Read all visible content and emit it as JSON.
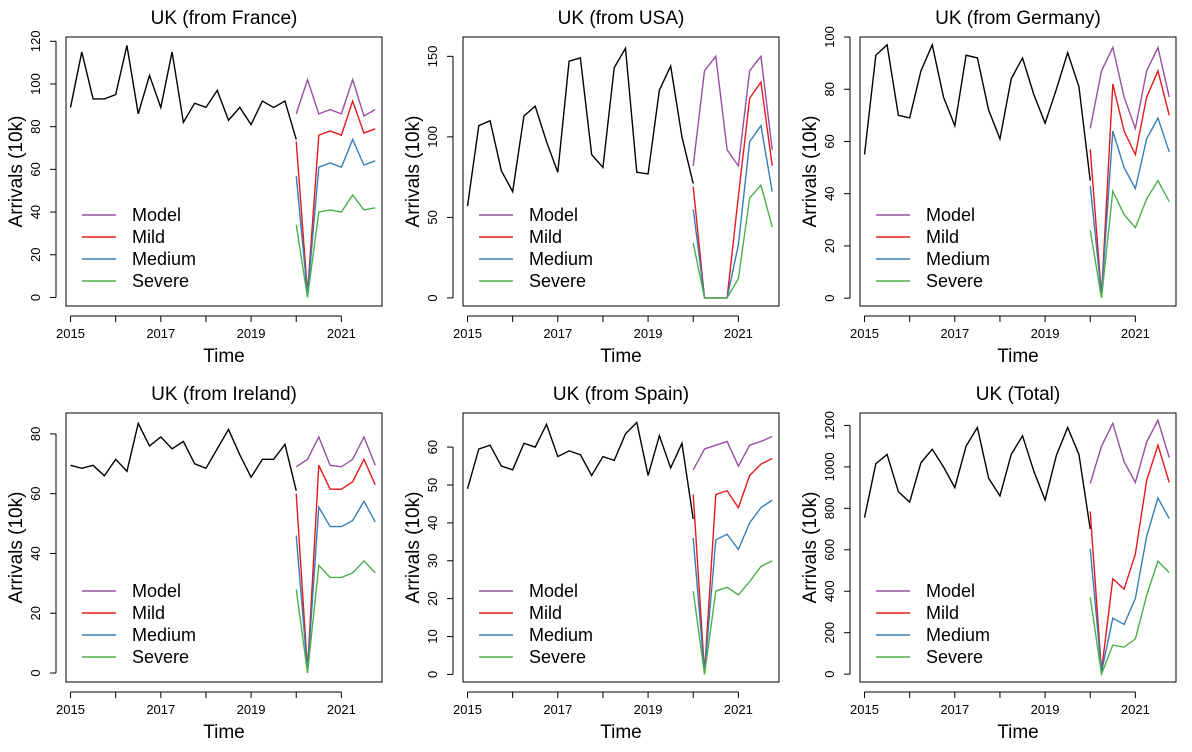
{
  "axis_labels": {
    "x": "Time",
    "y": "Arrivals (10k)"
  },
  "legend": {
    "entries": [
      {
        "name": "Model",
        "color": "#984ea3"
      },
      {
        "name": "Mild",
        "color": "#e41a1c"
      },
      {
        "name": "Medium",
        "color": "#377eb8"
      },
      {
        "name": "Severe",
        "color": "#4daf4a"
      }
    ],
    "placement": "bottom-left"
  },
  "history_color": "#000000",
  "chart_data": [
    {
      "type": "line",
      "title": "UK (from France)",
      "xlabel": "Time",
      "ylabel": "Arrivals (10k)",
      "xlim": [
        2014.9,
        2021.9
      ],
      "ylim": [
        -4,
        122
      ],
      "x_ticks": [
        2015,
        2017,
        2019,
        2021
      ],
      "x_minor_ticks": [
        2016,
        2018,
        2020
      ],
      "y_ticks": [
        0,
        20,
        40,
        60,
        80,
        100,
        120
      ],
      "history": {
        "x_start": 2015.0,
        "x_step": 0.25,
        "values": [
          89,
          115,
          93,
          93,
          95,
          118,
          86,
          104,
          89,
          115,
          82,
          91,
          89,
          97,
          83,
          89,
          81,
          92,
          89,
          92,
          74
        ]
      },
      "forecast": {
        "x_start": 2020.0,
        "x_step": 0.25,
        "series": [
          {
            "name": "Model",
            "values": [
              86,
              102,
              86,
              88,
              86,
              102,
              85,
              88
            ]
          },
          {
            "name": "Mild",
            "values": [
              73,
              2,
              76,
              78,
              76,
              92,
              77,
              79
            ]
          },
          {
            "name": "Medium",
            "values": [
              57,
              1,
              61,
              63,
              61,
              74,
              62,
              64
            ]
          },
          {
            "name": "Severe",
            "values": [
              34,
              0,
              40,
              41,
              40,
              48,
              41,
              42
            ]
          }
        ]
      }
    },
    {
      "type": "line",
      "title": "UK (from USA)",
      "xlabel": "Time",
      "ylabel": "Arrivals (10k)",
      "xlim": [
        2014.9,
        2021.9
      ],
      "ylim": [
        -5,
        162
      ],
      "x_ticks": [
        2015,
        2017,
        2019,
        2021
      ],
      "x_minor_ticks": [
        2016,
        2018,
        2020
      ],
      "y_ticks": [
        0,
        50,
        100,
        150
      ],
      "history": {
        "x_start": 2015.0,
        "x_step": 0.25,
        "values": [
          57,
          107,
          110,
          79,
          66,
          113,
          119,
          97,
          78,
          147,
          149,
          89,
          81,
          143,
          155,
          78,
          77,
          129,
          144,
          100,
          71
        ]
      },
      "forecast": {
        "x_start": 2020.0,
        "x_step": 0.25,
        "series": [
          {
            "name": "Model",
            "values": [
              82,
              141,
              150,
              92,
              82,
              141,
              150,
              92
            ]
          },
          {
            "name": "Mild",
            "values": [
              69,
              0,
              0,
              0,
              63,
              124,
              134,
              82
            ]
          },
          {
            "name": "Medium",
            "values": [
              55,
              0,
              0,
              0,
              33,
              97,
              107,
              66
            ]
          },
          {
            "name": "Severe",
            "values": [
              34,
              0,
              0,
              0,
              12,
              62,
              70,
              44
            ]
          }
        ]
      }
    },
    {
      "type": "line",
      "title": "UK (from Germany)",
      "xlabel": "Time",
      "ylabel": "Arrivals (10k)",
      "xlim": [
        2014.9,
        2021.9
      ],
      "ylim": [
        -3,
        100
      ],
      "x_ticks": [
        2015,
        2017,
        2019,
        2021
      ],
      "x_minor_ticks": [
        2016,
        2018,
        2020
      ],
      "y_ticks": [
        0,
        20,
        40,
        60,
        80,
        100
      ],
      "history": {
        "x_start": 2015.0,
        "x_step": 0.25,
        "values": [
          55,
          93,
          97,
          70,
          69,
          87,
          97,
          77,
          66,
          93,
          92,
          72,
          61,
          84,
          92,
          78,
          67,
          80,
          94,
          81,
          45
        ]
      },
      "forecast": {
        "x_start": 2020.0,
        "x_step": 0.25,
        "series": [
          {
            "name": "Model",
            "values": [
              65,
              87,
              96,
              77,
              65,
              87,
              96,
              77
            ]
          },
          {
            "name": "Mild",
            "values": [
              57,
              1,
              82,
              64,
              55,
              77,
              87,
              70
            ]
          },
          {
            "name": "Medium",
            "values": [
              43,
              1,
              64,
              50,
              42,
              61,
              69,
              56
            ]
          },
          {
            "name": "Severe",
            "values": [
              26,
              0,
              41,
              32,
              27,
              38,
              45,
              37
            ]
          }
        ]
      }
    },
    {
      "type": "line",
      "title": "UK (from Ireland)",
      "xlabel": "Time",
      "ylabel": "Arrivals (10k)",
      "xlim": [
        2014.9,
        2021.9
      ],
      "ylim": [
        -3,
        87
      ],
      "x_ticks": [
        2015,
        2017,
        2019,
        2021
      ],
      "x_minor_ticks": [
        2016,
        2018,
        2020
      ],
      "y_ticks": [
        0,
        20,
        40,
        60,
        80
      ],
      "history": {
        "x_start": 2015.0,
        "x_step": 0.25,
        "values": [
          69.5,
          68.5,
          69.5,
          66,
          71.5,
          67.5,
          83.5,
          76,
          79,
          75,
          77.5,
          70,
          68.5,
          75,
          81.5,
          73,
          65.5,
          71.5,
          71.5,
          76.5,
          61
        ]
      },
      "forecast": {
        "x_start": 2020.0,
        "x_step": 0.25,
        "series": [
          {
            "name": "Model",
            "values": [
              69,
              71.5,
              79,
              69.5,
              69,
              71.5,
              79,
              69.5
            ]
          },
          {
            "name": "Mild",
            "values": [
              60,
              1,
              69.5,
              61.5,
              61.5,
              64,
              71.5,
              63
            ]
          },
          {
            "name": "Medium",
            "values": [
              46,
              0.5,
              55.5,
              49,
              49,
              51,
              57.5,
              50.5
            ]
          },
          {
            "name": "Severe",
            "values": [
              28,
              0,
              36,
              32,
              32,
              33.5,
              37.5,
              33.5
            ]
          }
        ]
      }
    },
    {
      "type": "line",
      "title": "UK (from Spain)",
      "xlabel": "Time",
      "ylabel": "Arrivals (10k)",
      "xlim": [
        2014.9,
        2021.9
      ],
      "ylim": [
        -2,
        69
      ],
      "x_ticks": [
        2015,
        2017,
        2019,
        2021
      ],
      "x_minor_ticks": [
        2016,
        2018,
        2020
      ],
      "y_ticks": [
        0,
        10,
        20,
        30,
        40,
        50,
        60
      ],
      "history": {
        "x_start": 2015.0,
        "x_step": 0.25,
        "values": [
          49,
          59.5,
          60.5,
          55,
          54,
          61,
          60,
          66,
          57.5,
          59,
          58,
          52.5,
          57.5,
          56.5,
          63.5,
          66.5,
          52.5,
          63,
          54.5,
          61,
          41
        ]
      },
      "forecast": {
        "x_start": 2020.0,
        "x_step": 0.25,
        "series": [
          {
            "name": "Model",
            "values": [
              54,
              59.5,
              60.5,
              61.5,
              55,
              60.5,
              61.5,
              62.8
            ]
          },
          {
            "name": "Mild",
            "values": [
              47.5,
              0.5,
              47.5,
              48.5,
              44,
              52.5,
              55.5,
              57
            ]
          },
          {
            "name": "Medium",
            "values": [
              36,
              0.3,
              35.5,
              37,
              33,
              40,
              44,
              46
            ]
          },
          {
            "name": "Severe",
            "values": [
              22,
              0,
              22,
              23,
              21,
              24.5,
              28.5,
              30
            ]
          }
        ]
      }
    },
    {
      "type": "line",
      "title": "UK (Total)",
      "xlabel": "Time",
      "ylabel": "Arrivals (10k)",
      "xlim": [
        2014.9,
        2021.9
      ],
      "ylim": [
        -38,
        1260
      ],
      "x_ticks": [
        2015,
        2017,
        2019,
        2021
      ],
      "x_minor_ticks": [
        2016,
        2018,
        2020
      ],
      "y_ticks": [
        0,
        200,
        400,
        600,
        800,
        1000,
        1200
      ],
      "history": {
        "x_start": 2015.0,
        "x_step": 0.25,
        "values": [
          755,
          1015,
          1060,
          880,
          830,
          1020,
          1085,
          1000,
          900,
          1100,
          1190,
          945,
          860,
          1060,
          1150,
          980,
          840,
          1055,
          1190,
          1060,
          700
        ]
      },
      "forecast": {
        "x_start": 2020.0,
        "x_step": 0.25,
        "series": [
          {
            "name": "Model",
            "values": [
              920,
              1100,
              1210,
              1025,
              925,
              1120,
              1225,
              1045
            ]
          },
          {
            "name": "Mild",
            "values": [
              785,
              15,
              460,
              410,
              580,
              935,
              1105,
              925
            ]
          },
          {
            "name": "Medium",
            "values": [
              605,
              10,
              270,
              240,
              365,
              665,
              850,
              750
            ]
          },
          {
            "name": "Severe",
            "values": [
              370,
              0,
              140,
              130,
              170,
              380,
              545,
              490
            ]
          }
        ]
      }
    }
  ]
}
